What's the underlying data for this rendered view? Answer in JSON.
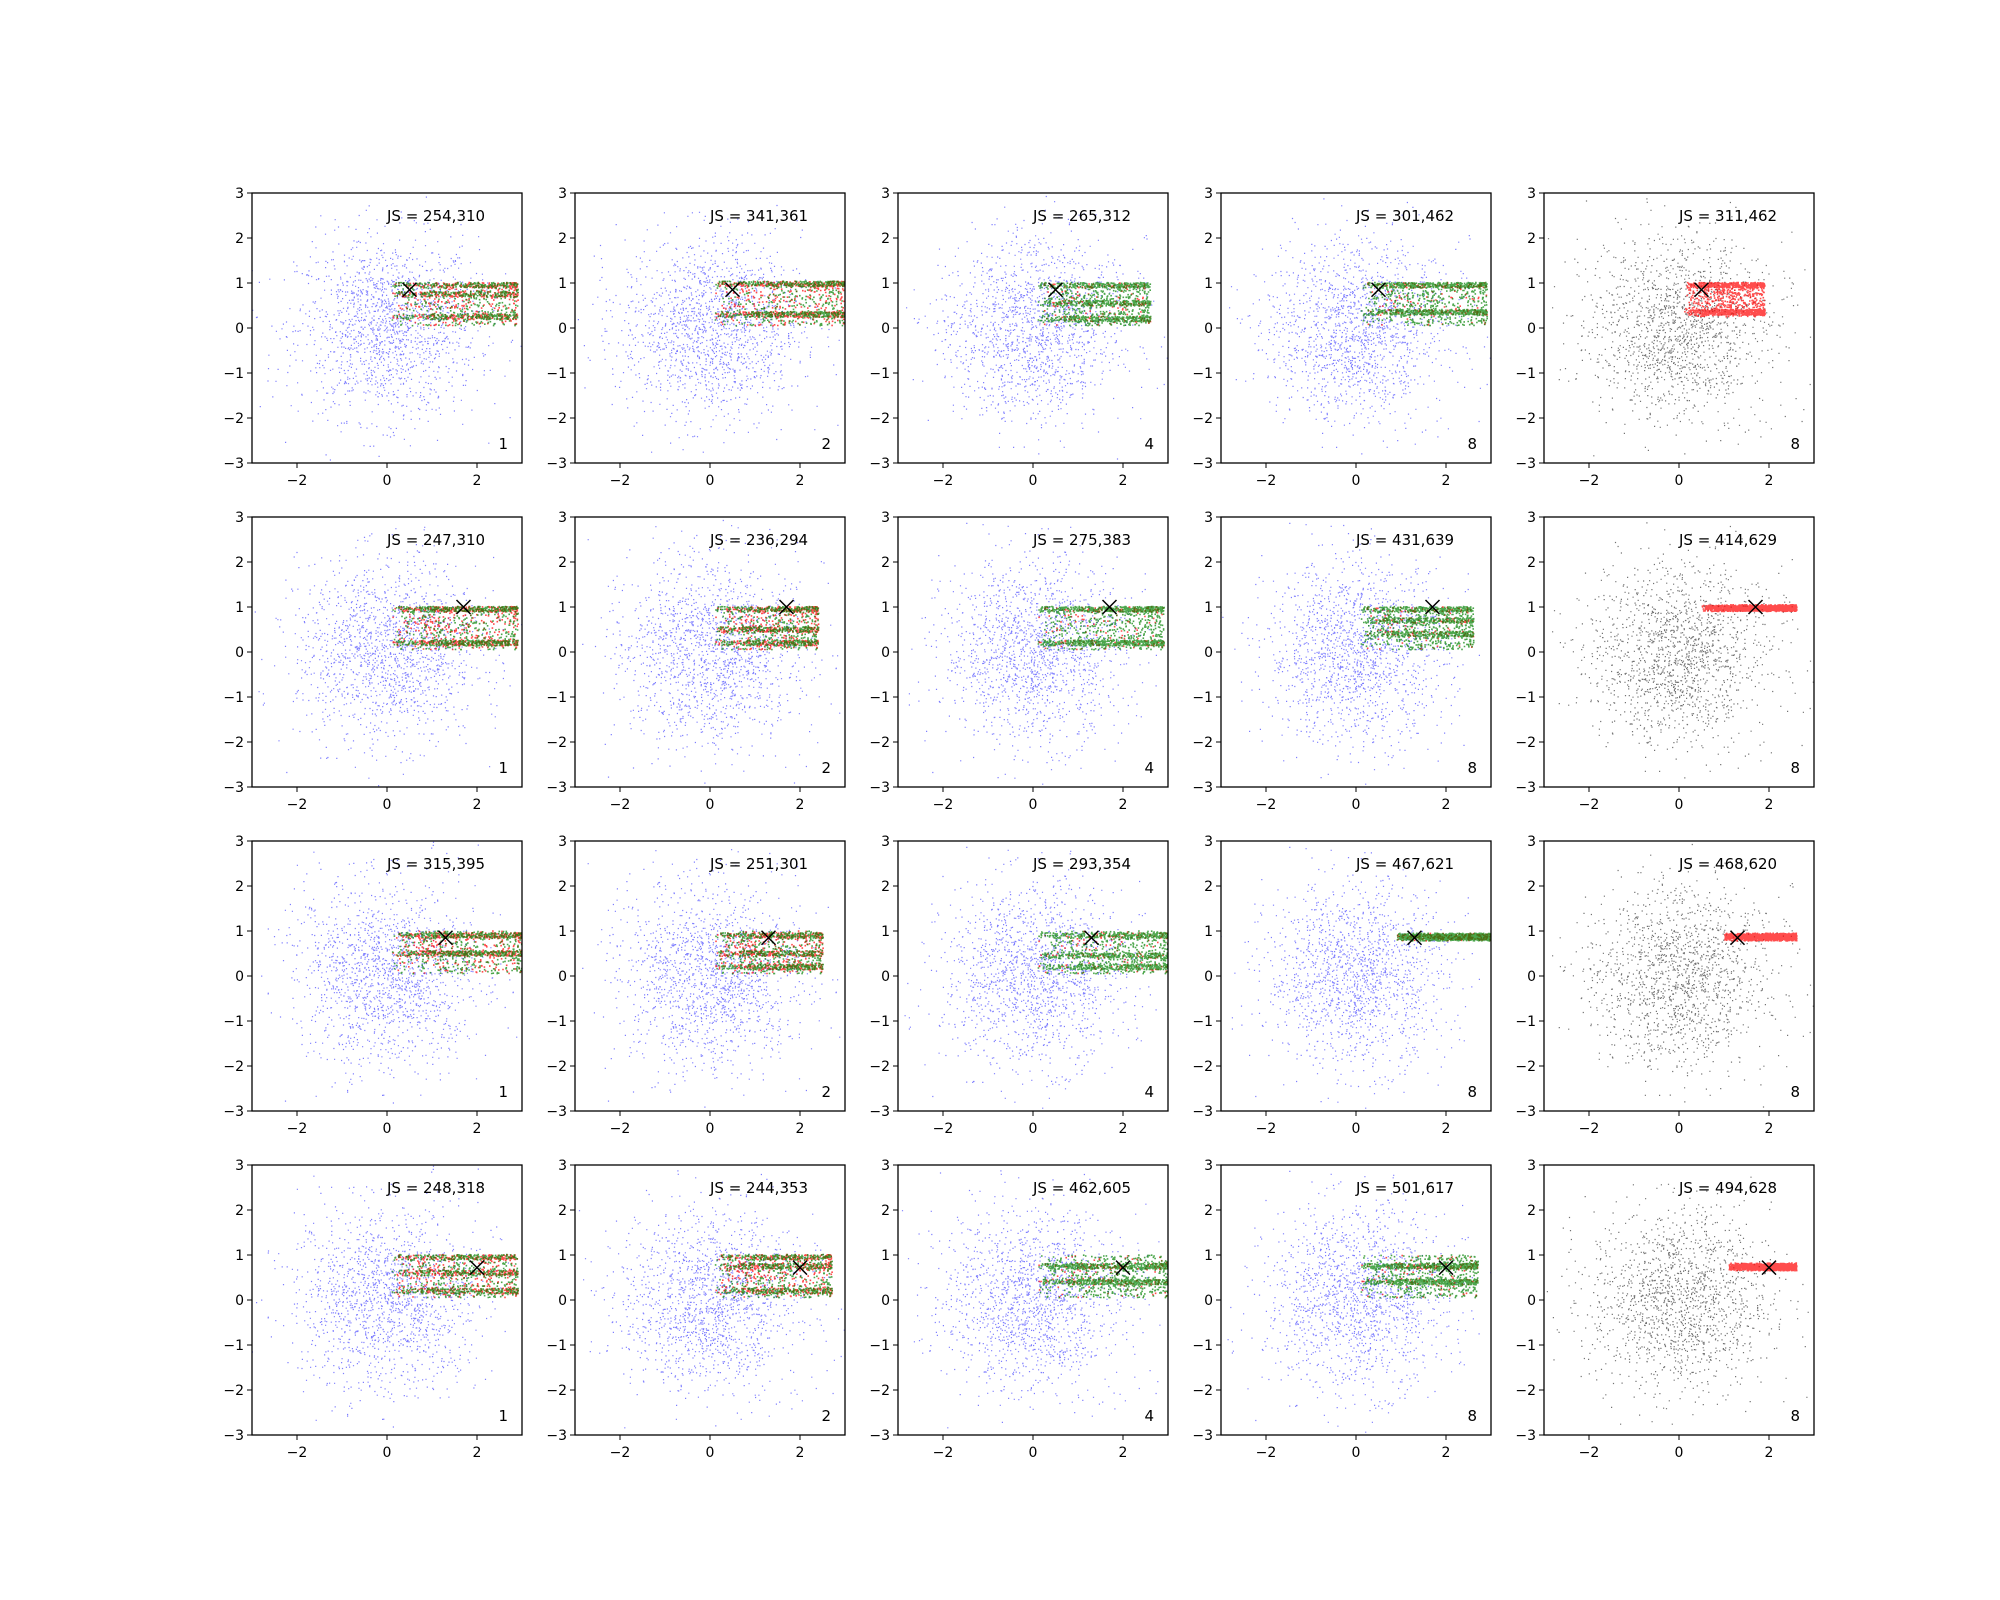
{
  "figure": {
    "rows": 4,
    "cols": 5
  },
  "colors": {
    "background_points": "#0000ff",
    "background_points_alt": "#000000",
    "generated_a": "#ff0000",
    "generated_b": "#008000",
    "marker": "#000000"
  },
  "chart_data": [
    {
      "type": "scatter",
      "row": 0,
      "col": 0,
      "js_label": "JS = 254,310",
      "k_label": "1",
      "marker": [
        0.5,
        0.85
      ],
      "xlim": [
        -3,
        3
      ],
      "ylim": [
        -3,
        3
      ],
      "xticks": [
        -2,
        0,
        2
      ],
      "yticks": [
        -3,
        -2,
        -1,
        0,
        1,
        2,
        3
      ],
      "band": {
        "x": [
          0.1,
          2.9
        ],
        "y": [
          0.05,
          1.0
        ],
        "streaks": [
          0.95,
          0.75,
          0.25
        ]
      },
      "dominant": "mixed",
      "background": "blue"
    },
    {
      "type": "scatter",
      "row": 0,
      "col": 1,
      "js_label": "JS = 341,361",
      "k_label": "2",
      "marker": [
        0.5,
        0.85
      ],
      "xlim": [
        -3,
        3
      ],
      "ylim": [
        -3,
        3
      ],
      "xticks": [
        -2,
        0,
        2
      ],
      "yticks": [
        -3,
        -2,
        -1,
        0,
        1,
        2,
        3
      ],
      "band": {
        "x": [
          0.1,
          3.0
        ],
        "y": [
          0.05,
          1.0
        ],
        "streaks": [
          0.98,
          0.3
        ]
      },
      "dominant": "mixed",
      "background": "blue"
    },
    {
      "type": "scatter",
      "row": 0,
      "col": 2,
      "js_label": "JS = 265,312",
      "k_label": "4",
      "marker": [
        0.5,
        0.85
      ],
      "xlim": [
        -3,
        3
      ],
      "ylim": [
        -3,
        3
      ],
      "xticks": [
        -2,
        0,
        2
      ],
      "yticks": [
        -3,
        -2,
        -1,
        0,
        1,
        2,
        3
      ],
      "band": {
        "x": [
          0.1,
          2.6
        ],
        "y": [
          0.05,
          1.0
        ],
        "streaks": [
          0.95,
          0.55,
          0.2
        ]
      },
      "dominant": "green",
      "background": "blue"
    },
    {
      "type": "scatter",
      "row": 0,
      "col": 3,
      "js_label": "JS = 301,462",
      "k_label": "8",
      "marker": [
        0.5,
        0.85
      ],
      "xlim": [
        -3,
        3
      ],
      "ylim": [
        -3,
        3
      ],
      "xticks": [
        -2,
        0,
        2
      ],
      "yticks": [
        -3,
        -2,
        -1,
        0,
        1,
        2,
        3
      ],
      "band": {
        "x": [
          0.1,
          2.9
        ],
        "y": [
          0.05,
          1.0
        ],
        "streaks": [
          0.95,
          0.35
        ]
      },
      "dominant": "green",
      "background": "blue"
    },
    {
      "type": "scatter",
      "row": 0,
      "col": 4,
      "js_label": "JS = 311,462",
      "k_label": "8",
      "marker": [
        0.5,
        0.85
      ],
      "xlim": [
        -3,
        3
      ],
      "ylim": [
        -3,
        3
      ],
      "xticks": [
        -2,
        0,
        2
      ],
      "yticks": [
        -3,
        -2,
        -1,
        0,
        1,
        2,
        3
      ],
      "band": {
        "x": [
          0.1,
          1.9
        ],
        "y": [
          0.25,
          1.0
        ],
        "streaks": [
          0.95,
          0.35
        ]
      },
      "dominant": "red",
      "background": "black"
    },
    {
      "type": "scatter",
      "row": 1,
      "col": 0,
      "js_label": "JS = 247,310",
      "k_label": "1",
      "marker": [
        1.7,
        1.0
      ],
      "xlim": [
        -3,
        3
      ],
      "ylim": [
        -3,
        3
      ],
      "xticks": [
        -2,
        0,
        2
      ],
      "yticks": [
        -3,
        -2,
        -1,
        0,
        1,
        2,
        3
      ],
      "band": {
        "x": [
          0.1,
          2.9
        ],
        "y": [
          0.05,
          1.0
        ],
        "streaks": [
          0.95,
          0.2
        ]
      },
      "dominant": "mixed",
      "background": "blue"
    },
    {
      "type": "scatter",
      "row": 1,
      "col": 1,
      "js_label": "JS = 236,294",
      "k_label": "2",
      "marker": [
        1.7,
        1.0
      ],
      "xlim": [
        -3,
        3
      ],
      "ylim": [
        -3,
        3
      ],
      "xticks": [
        -2,
        0,
        2
      ],
      "yticks": [
        -3,
        -2,
        -1,
        0,
        1,
        2,
        3
      ],
      "band": {
        "x": [
          0.1,
          2.4
        ],
        "y": [
          0.05,
          1.0
        ],
        "streaks": [
          0.95,
          0.5,
          0.2
        ]
      },
      "dominant": "mixed",
      "background": "blue"
    },
    {
      "type": "scatter",
      "row": 1,
      "col": 2,
      "js_label": "JS = 275,383",
      "k_label": "4",
      "marker": [
        1.7,
        1.0
      ],
      "xlim": [
        -3,
        3
      ],
      "ylim": [
        -3,
        3
      ],
      "xticks": [
        -2,
        0,
        2
      ],
      "yticks": [
        -3,
        -2,
        -1,
        0,
        1,
        2,
        3
      ],
      "band": {
        "x": [
          0.1,
          2.9
        ],
        "y": [
          0.05,
          1.0
        ],
        "streaks": [
          0.95,
          0.2
        ]
      },
      "dominant": "green",
      "background": "blue"
    },
    {
      "type": "scatter",
      "row": 1,
      "col": 3,
      "js_label": "JS = 431,639",
      "k_label": "8",
      "marker": [
        1.7,
        1.0
      ],
      "xlim": [
        -3,
        3
      ],
      "ylim": [
        -3,
        3
      ],
      "xticks": [
        -2,
        0,
        2
      ],
      "yticks": [
        -3,
        -2,
        -1,
        0,
        1,
        2,
        3
      ],
      "band": {
        "x": [
          0.1,
          2.6
        ],
        "y": [
          0.05,
          1.0
        ],
        "streaks": [
          0.95,
          0.7,
          0.4
        ]
      },
      "dominant": "green",
      "background": "blue"
    },
    {
      "type": "scatter",
      "row": 1,
      "col": 4,
      "js_label": "JS = 414,629",
      "k_label": "8",
      "marker": [
        1.7,
        1.0
      ],
      "xlim": [
        -3,
        3
      ],
      "ylim": [
        -3,
        3
      ],
      "xticks": [
        -2,
        0,
        2
      ],
      "yticks": [
        -3,
        -2,
        -1,
        0,
        1,
        2,
        3
      ],
      "band": {
        "x": [
          0.5,
          2.6
        ],
        "y": [
          0.9,
          1.05
        ],
        "streaks": [
          0.97
        ]
      },
      "dominant": "red",
      "background": "black"
    },
    {
      "type": "scatter",
      "row": 2,
      "col": 0,
      "js_label": "JS = 315,395",
      "k_label": "1",
      "marker": [
        1.3,
        0.85
      ],
      "xlim": [
        -3,
        3
      ],
      "ylim": [
        -3,
        3
      ],
      "xticks": [
        -2,
        0,
        2
      ],
      "yticks": [
        -3,
        -2,
        -1,
        0,
        1,
        2,
        3
      ],
      "band": {
        "x": [
          0.1,
          3.0
        ],
        "y": [
          0.05,
          1.0
        ],
        "streaks": [
          0.9,
          0.5
        ]
      },
      "dominant": "mixed",
      "background": "blue"
    },
    {
      "type": "scatter",
      "row": 2,
      "col": 1,
      "js_label": "JS = 251,301",
      "k_label": "2",
      "marker": [
        1.3,
        0.85
      ],
      "xlim": [
        -3,
        3
      ],
      "ylim": [
        -3,
        3
      ],
      "xticks": [
        -2,
        0,
        2
      ],
      "yticks": [
        -3,
        -2,
        -1,
        0,
        1,
        2,
        3
      ],
      "band": {
        "x": [
          0.1,
          2.5
        ],
        "y": [
          0.05,
          1.0
        ],
        "streaks": [
          0.9,
          0.5,
          0.2
        ]
      },
      "dominant": "mixed",
      "background": "blue"
    },
    {
      "type": "scatter",
      "row": 2,
      "col": 2,
      "js_label": "JS = 293,354",
      "k_label": "4",
      "marker": [
        1.3,
        0.85
      ],
      "xlim": [
        -3,
        3
      ],
      "ylim": [
        -3,
        3
      ],
      "xticks": [
        -2,
        0,
        2
      ],
      "yticks": [
        -3,
        -2,
        -1,
        0,
        1,
        2,
        3
      ],
      "band": {
        "x": [
          0.1,
          3.0
        ],
        "y": [
          0.05,
          1.0
        ],
        "streaks": [
          0.9,
          0.45,
          0.2
        ]
      },
      "dominant": "green",
      "background": "blue"
    },
    {
      "type": "scatter",
      "row": 2,
      "col": 3,
      "js_label": "JS = 467,621",
      "k_label": "8",
      "marker": [
        1.3,
        0.85
      ],
      "xlim": [
        -3,
        3
      ],
      "ylim": [
        -3,
        3
      ],
      "xticks": [
        -2,
        0,
        2
      ],
      "yticks": [
        -3,
        -2,
        -1,
        0,
        1,
        2,
        3
      ],
      "band": {
        "x": [
          0.9,
          3.0
        ],
        "y": [
          0.78,
          0.95
        ],
        "streaks": [
          0.87
        ]
      },
      "dominant": "green",
      "background": "blue"
    },
    {
      "type": "scatter",
      "row": 2,
      "col": 4,
      "js_label": "JS = 468,620",
      "k_label": "8",
      "marker": [
        1.3,
        0.85
      ],
      "xlim": [
        -3,
        3
      ],
      "ylim": [
        -3,
        3
      ],
      "xticks": [
        -2,
        0,
        2
      ],
      "yticks": [
        -3,
        -2,
        -1,
        0,
        1,
        2,
        3
      ],
      "band": {
        "x": [
          1.0,
          2.6
        ],
        "y": [
          0.78,
          0.95
        ],
        "streaks": [
          0.87
        ]
      },
      "dominant": "red",
      "background": "black"
    },
    {
      "type": "scatter",
      "row": 3,
      "col": 0,
      "js_label": "JS = 248,318",
      "k_label": "1",
      "marker": [
        2.0,
        0.72
      ],
      "xlim": [
        -3,
        3
      ],
      "ylim": [
        -3,
        3
      ],
      "xticks": [
        -2,
        0,
        2
      ],
      "yticks": [
        -3,
        -2,
        -1,
        0,
        1,
        2,
        3
      ],
      "band": {
        "x": [
          0.1,
          2.9
        ],
        "y": [
          0.05,
          1.0
        ],
        "streaks": [
          0.95,
          0.6,
          0.2
        ]
      },
      "dominant": "mixed",
      "background": "blue"
    },
    {
      "type": "scatter",
      "row": 3,
      "col": 1,
      "js_label": "JS = 244,353",
      "k_label": "2",
      "marker": [
        2.0,
        0.72
      ],
      "xlim": [
        -3,
        3
      ],
      "ylim": [
        -3,
        3
      ],
      "xticks": [
        -2,
        0,
        2
      ],
      "yticks": [
        -3,
        -2,
        -1,
        0,
        1,
        2,
        3
      ],
      "band": {
        "x": [
          0.1,
          2.7
        ],
        "y": [
          0.05,
          1.0
        ],
        "streaks": [
          0.95,
          0.75,
          0.2
        ]
      },
      "dominant": "mixed",
      "background": "blue"
    },
    {
      "type": "scatter",
      "row": 3,
      "col": 2,
      "js_label": "JS = 462,605",
      "k_label": "4",
      "marker": [
        2.0,
        0.72
      ],
      "xlim": [
        -3,
        3
      ],
      "ylim": [
        -3,
        3
      ],
      "xticks": [
        -2,
        0,
        2
      ],
      "yticks": [
        -3,
        -2,
        -1,
        0,
        1,
        2,
        3
      ],
      "band": {
        "x": [
          0.1,
          3.0
        ],
        "y": [
          0.05,
          1.0
        ],
        "streaks": [
          0.75,
          0.4
        ]
      },
      "dominant": "green",
      "background": "blue"
    },
    {
      "type": "scatter",
      "row": 3,
      "col": 3,
      "js_label": "JS = 501,617",
      "k_label": "8",
      "marker": [
        2.0,
        0.72
      ],
      "xlim": [
        -3,
        3
      ],
      "ylim": [
        -3,
        3
      ],
      "xticks": [
        -2,
        0,
        2
      ],
      "yticks": [
        -3,
        -2,
        -1,
        0,
        1,
        2,
        3
      ],
      "band": {
        "x": [
          0.1,
          2.7
        ],
        "y": [
          0.05,
          1.0
        ],
        "streaks": [
          0.75,
          0.4
        ]
      },
      "dominant": "green",
      "background": "blue"
    },
    {
      "type": "scatter",
      "row": 3,
      "col": 4,
      "js_label": "JS = 494,628",
      "k_label": "8",
      "marker": [
        2.0,
        0.72
      ],
      "xlim": [
        -3,
        3
      ],
      "ylim": [
        -3,
        3
      ],
      "xticks": [
        -2,
        0,
        2
      ],
      "yticks": [
        -3,
        -2,
        -1,
        0,
        1,
        2,
        3
      ],
      "band": {
        "x": [
          1.1,
          2.6
        ],
        "y": [
          0.65,
          0.82
        ],
        "streaks": [
          0.73
        ]
      },
      "dominant": "red",
      "background": "black"
    }
  ]
}
